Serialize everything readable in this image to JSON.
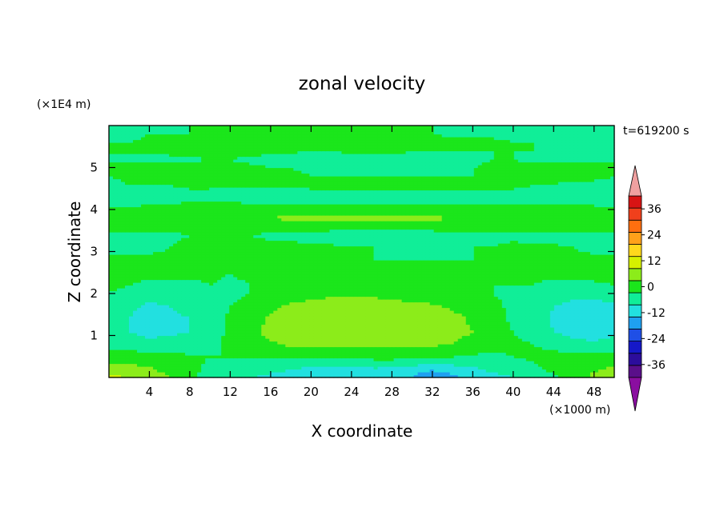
{
  "chart_data": {
    "type": "heatmap",
    "title": "zonal velocity",
    "xlabel": "X coordinate",
    "ylabel": "Z coordinate",
    "x_unit_label": "(×1000 m)",
    "y_unit_label": "(×1E4 m)",
    "time_label": "t=619200 s",
    "xlim": [
      0,
      50
    ],
    "ylim": [
      0,
      6
    ],
    "x_ticks": [
      4,
      8,
      12,
      16,
      20,
      24,
      28,
      32,
      36,
      40,
      44,
      48
    ],
    "y_ticks": [
      1,
      2,
      3,
      4,
      5
    ],
    "colorbar": {
      "levels": [
        -42,
        -36,
        -30,
        -24,
        -18,
        -12,
        -6,
        0,
        6,
        12,
        18,
        24,
        30,
        36,
        42
      ],
      "tick_labels": [
        "-36",
        "-24",
        "-12",
        "0",
        "12",
        "24",
        "36"
      ],
      "colors": [
        "#5a0f8a",
        "#2c0d9c",
        "#1518c8",
        "#1f4fe6",
        "#1fa0f0",
        "#22e0e0",
        "#10ee98",
        "#1be61b",
        "#8cec1a",
        "#d6f000",
        "#ffd81c",
        "#ffa11a",
        "#ff6f0f",
        "#f0401c",
        "#d81414"
      ],
      "under_color": "#8a0ea0",
      "over_color": "#f0a0a0"
    },
    "z": {
      "x": [
        0,
        2,
        4,
        6,
        8,
        10,
        12,
        14,
        16,
        18,
        20,
        22,
        24,
        26,
        28,
        30,
        32,
        34,
        36,
        38,
        40,
        42,
        44,
        46,
        48,
        50
      ],
      "y": [
        0,
        0.2,
        0.5,
        0.8,
        1.1,
        1.4,
        1.7,
        2.0,
        2.2,
        2.5,
        2.8,
        3.1,
        3.4,
        3.6,
        3.8,
        4.0,
        4.2,
        4.4,
        4.6,
        4.8,
        5.0,
        5.2,
        5.4,
        5.6,
        5.8,
        6.0
      ],
      "values": [
        [
          14,
          12,
          10,
          6,
          2,
          -3,
          -5,
          -6,
          -7,
          -7,
          -10,
          -12,
          -11,
          -9,
          -10,
          -12,
          -18,
          -14,
          -10,
          -8,
          -6,
          -2,
          -1,
          2,
          8,
          12
        ],
        [
          8,
          8,
          7,
          4,
          1,
          -1,
          -3,
          -3,
          -5,
          -6,
          -8,
          -9,
          -8,
          -7,
          -7,
          -9,
          -11,
          -9,
          -7,
          -5,
          -4,
          -1,
          1,
          3,
          5,
          7
        ],
        [
          3,
          3,
          2,
          2,
          1,
          0,
          0,
          0,
          1,
          1,
          1,
          2,
          2,
          2,
          2,
          1,
          0,
          0,
          -1,
          -1,
          0,
          1,
          2,
          2,
          3,
          3
        ],
        [
          -2,
          -3,
          -4,
          -4,
          -4,
          -2,
          2,
          3,
          5,
          7,
          7,
          7,
          8,
          8,
          8,
          8,
          7,
          6,
          4,
          2,
          1,
          0,
          -2,
          -4,
          -5,
          -4
        ],
        [
          -5,
          -6,
          -8,
          -7,
          -6,
          -3,
          1,
          4,
          8,
          9,
          10,
          11,
          11,
          11,
          11,
          11,
          10,
          8,
          6,
          3,
          0,
          -2,
          -6,
          -8,
          -9,
          -7
        ],
        [
          -4,
          -6,
          -8,
          -7,
          -6,
          -3,
          1,
          3,
          7,
          9,
          10,
          11,
          12,
          11,
          11,
          11,
          10,
          8,
          5,
          2,
          -1,
          -3,
          -7,
          -9,
          -11,
          -9
        ],
        [
          -3,
          -5,
          -7,
          -6,
          -5,
          -3,
          0,
          2,
          5,
          7,
          8,
          9,
          9,
          9,
          8,
          8,
          7,
          5,
          3,
          1,
          -1,
          -3,
          -6,
          -8,
          -9,
          -7
        ],
        [
          0,
          -2,
          -4,
          -4,
          -3,
          -2,
          -1,
          0,
          2,
          3,
          4,
          5,
          5,
          5,
          4,
          3,
          2,
          2,
          1,
          0,
          -1,
          -2,
          -3,
          -4,
          -4,
          -3
        ],
        [
          1,
          0,
          -1,
          -1,
          -1,
          0,
          -1,
          0,
          0,
          1,
          2,
          2,
          2,
          2,
          1,
          1,
          0,
          0,
          0,
          0,
          0,
          0,
          -1,
          -1,
          -1,
          0
        ],
        [
          2,
          2,
          1,
          1,
          1,
          1,
          0,
          1,
          1,
          2,
          2,
          1,
          1,
          1,
          1,
          1,
          1,
          1,
          1,
          1,
          1,
          1,
          1,
          1,
          2,
          2
        ],
        [
          1,
          1,
          1,
          1,
          1,
          1,
          1,
          1,
          1,
          1,
          1,
          0,
          0,
          0,
          0,
          0,
          0,
          0,
          0,
          0,
          0,
          1,
          1,
          1,
          1,
          1
        ],
        [
          -2,
          -2,
          -1,
          0,
          1,
          2,
          2,
          2,
          1,
          1,
          1,
          1,
          0,
          0,
          -1,
          -1,
          -1,
          -1,
          0,
          0,
          1,
          1,
          1,
          0,
          -1,
          -1
        ],
        [
          -1,
          -1,
          -1,
          -1,
          0,
          0,
          0,
          0,
          -1,
          -1,
          -2,
          -3,
          -4,
          -5,
          -5,
          -4,
          -3,
          -2,
          -1,
          -1,
          -1,
          -2,
          -3,
          -3,
          -2,
          -1
        ],
        [
          2,
          2,
          2,
          2,
          3,
          3,
          3,
          3,
          3,
          3,
          3,
          3,
          3,
          3,
          3,
          3,
          3,
          3,
          3,
          3,
          3,
          3,
          3,
          3,
          2,
          2
        ],
        [
          3,
          3,
          4,
          4,
          4,
          5,
          5,
          6,
          6,
          7,
          7,
          7,
          7,
          7,
          7,
          7,
          7,
          6,
          6,
          5,
          4,
          4,
          3,
          3,
          3,
          3
        ],
        [
          1,
          1,
          2,
          2,
          3,
          3,
          3,
          3,
          4,
          4,
          4,
          4,
          4,
          4,
          3,
          3,
          3,
          3,
          2,
          2,
          2,
          2,
          2,
          1,
          1,
          1
        ],
        [
          -2,
          -2,
          -1,
          -1,
          0,
          0,
          0,
          -1,
          -1,
          -1,
          -2,
          -2,
          -2,
          -1,
          -1,
          -1,
          -1,
          -2,
          -2,
          -2,
          -1,
          -1,
          -1,
          -1,
          -1,
          -2
        ],
        [
          -1,
          -1,
          -1,
          -1,
          -1,
          -1,
          -2,
          -3,
          -3,
          -4,
          -4,
          -4,
          -4,
          -3,
          -3,
          -2,
          -2,
          -2,
          -1,
          -1,
          -1,
          -1,
          -1,
          -1,
          -1,
          -1
        ],
        [
          -1,
          0,
          0,
          0,
          1,
          1,
          1,
          2,
          3,
          3,
          4,
          4,
          4,
          4,
          3,
          3,
          2,
          2,
          1,
          1,
          1,
          0,
          0,
          -1,
          -1,
          -1
        ],
        [
          0,
          1,
          1,
          1,
          1,
          1,
          1,
          1,
          1,
          1,
          0,
          0,
          0,
          0,
          0,
          0,
          0,
          0,
          0,
          0,
          0,
          1,
          1,
          1,
          1,
          0
        ],
        [
          2,
          2,
          2,
          3,
          2,
          2,
          1,
          1,
          0,
          0,
          -1,
          -1,
          -1,
          -2,
          -1,
          -1,
          -1,
          -1,
          0,
          1,
          1,
          2,
          2,
          2,
          2,
          2
        ],
        [
          -1,
          -2,
          -2,
          -2,
          -1,
          0,
          0,
          -1,
          -2,
          -3,
          -3,
          -3,
          -3,
          -3,
          -2,
          -2,
          -2,
          -2,
          -1,
          0,
          0,
          -1,
          -1,
          -1,
          -1,
          -1
        ],
        [
          1,
          1,
          2,
          2,
          2,
          2,
          2,
          2,
          1,
          1,
          0,
          0,
          1,
          1,
          1,
          0,
          0,
          0,
          0,
          0,
          0,
          0,
          0,
          0,
          0,
          0
        ],
        [
          0,
          0,
          1,
          1,
          2,
          2,
          2,
          2,
          2,
          2,
          2,
          2,
          2,
          2,
          2,
          2,
          2,
          2,
          2,
          1,
          0,
          0,
          -1,
          -1,
          -1,
          -1
        ],
        [
          -1,
          -1,
          0,
          0,
          0,
          1,
          1,
          2,
          2,
          2,
          2,
          2,
          2,
          2,
          1,
          0,
          0,
          -1,
          -1,
          -1,
          -1,
          -1,
          -1,
          -1,
          -1,
          -1
        ],
        [
          -1,
          -1,
          -1,
          -1,
          0,
          0,
          1,
          1,
          1,
          1,
          2,
          2,
          2,
          1,
          1,
          0,
          0,
          -1,
          -1,
          -1,
          -1,
          -1,
          -1,
          -1,
          -1,
          -1
        ]
      ]
    }
  }
}
